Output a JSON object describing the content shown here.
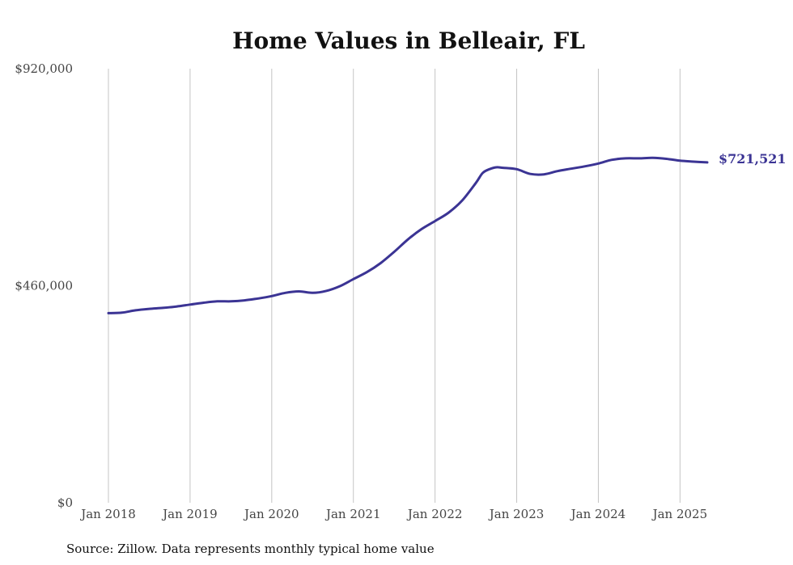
{
  "colors": {
    "line": "#3b3494",
    "grid": "#c4c4c4"
  },
  "chart_data": {
    "type": "line",
    "title": "Home Values in Belleair, FL",
    "source": "Source: Zillow. Data represents monthly typical home value",
    "xlabel": "",
    "ylabel": "",
    "ylim": [
      0,
      920000
    ],
    "y_ticks": [
      0,
      460000,
      920000
    ],
    "y_tick_labels": [
      "$0",
      "$460,000",
      "$920,000"
    ],
    "x_tick_labels": [
      "Jan 2018",
      "Jan 2019",
      "Jan 2020",
      "Jan 2021",
      "Jan 2022",
      "Jan 2023",
      "Jan 2024",
      "Jan 2025"
    ],
    "x_range": [
      "2018-01",
      "2025-05"
    ],
    "grid": "vertical",
    "end_label": "$721,521",
    "series": [
      {
        "points": [
          [
            "2018-01",
            402000
          ],
          [
            "2018-03",
            403000
          ],
          [
            "2018-05",
            408000
          ],
          [
            "2018-07",
            411000
          ],
          [
            "2018-09",
            413000
          ],
          [
            "2018-11",
            416000
          ],
          [
            "2019-01",
            420000
          ],
          [
            "2019-03",
            424000
          ],
          [
            "2019-05",
            427000
          ],
          [
            "2019-07",
            427000
          ],
          [
            "2019-09",
            429000
          ],
          [
            "2019-11",
            433000
          ],
          [
            "2020-01",
            438000
          ],
          [
            "2020-03",
            445000
          ],
          [
            "2020-05",
            448000
          ],
          [
            "2020-07",
            445000
          ],
          [
            "2020-09",
            449000
          ],
          [
            "2020-11",
            459000
          ],
          [
            "2021-01",
            474000
          ],
          [
            "2021-03",
            489000
          ],
          [
            "2021-05",
            508000
          ],
          [
            "2021-07",
            532000
          ],
          [
            "2021-09",
            558000
          ],
          [
            "2021-11",
            580000
          ],
          [
            "2022-01",
            597000
          ],
          [
            "2022-03",
            615000
          ],
          [
            "2022-05",
            641000
          ],
          [
            "2022-07",
            678000
          ],
          [
            "2022-08",
            699000
          ],
          [
            "2022-09",
            707000
          ],
          [
            "2022-10",
            711000
          ],
          [
            "2022-11",
            710000
          ],
          [
            "2023-01",
            707000
          ],
          [
            "2023-03",
            697000
          ],
          [
            "2023-05",
            696000
          ],
          [
            "2023-07",
            703000
          ],
          [
            "2023-09",
            708000
          ],
          [
            "2023-11",
            713000
          ],
          [
            "2024-01",
            719000
          ],
          [
            "2024-03",
            727000
          ],
          [
            "2024-05",
            730000
          ],
          [
            "2024-07",
            730000
          ],
          [
            "2024-09",
            731000
          ],
          [
            "2024-11",
            729000
          ],
          [
            "2025-01",
            725000
          ],
          [
            "2025-03",
            723000
          ],
          [
            "2025-05",
            721521
          ]
        ]
      }
    ]
  }
}
